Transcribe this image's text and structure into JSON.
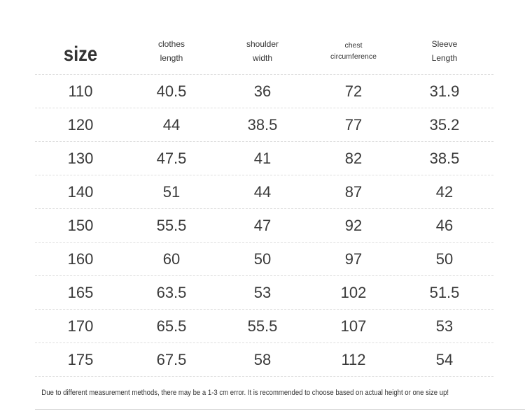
{
  "table": {
    "headers": [
      [
        "size"
      ],
      [
        "clothes",
        "length"
      ],
      [
        "shoulder",
        "width"
      ],
      [
        "chest",
        "circumference"
      ],
      [
        "Sleeve",
        "Length"
      ]
    ],
    "rows": [
      [
        "110",
        "40.5",
        "36",
        "72",
        "31.9"
      ],
      [
        "120",
        "44",
        "38.5",
        "77",
        "35.2"
      ],
      [
        "130",
        "47.5",
        "41",
        "82",
        "38.5"
      ],
      [
        "140",
        "51",
        "44",
        "87",
        "42"
      ],
      [
        "150",
        "55.5",
        "47",
        "92",
        "46"
      ],
      [
        "160",
        "60",
        "50",
        "97",
        "50"
      ],
      [
        "165",
        "63.5",
        "53",
        "102",
        "51.5"
      ],
      [
        "170",
        "65.5",
        "55.5",
        "107",
        "53"
      ],
      [
        "175",
        "67.5",
        "58",
        "112",
        "54"
      ]
    ]
  },
  "footnote": "Due to different measurement methods, there may be a 1-3 cm error. It is recommended to choose based on actual height or one size up!"
}
